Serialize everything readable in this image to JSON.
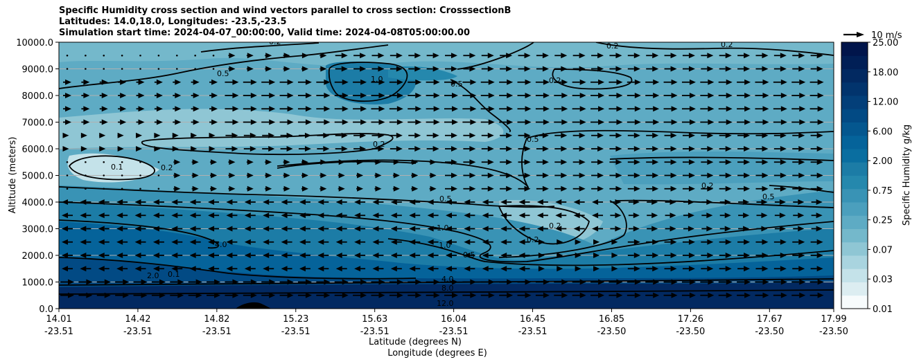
{
  "chart_data": {
    "type": "contourf",
    "title_lines": [
      "Specific Humidity cross section and wind vectors parallel to cross section: CrosssectionB",
      "Latitudes: 14.0,18.0, Longitudes: -23.5,-23.5",
      "Simulation start time: 2024-04-07_00:00:00, Valid time: 2024-04-08T05:00:00.00"
    ],
    "xlabel_lines": [
      "Latitude (degrees N)",
      "Longitude (degrees E)"
    ],
    "ylabel": "Altitude (meters)",
    "x_ticks": [
      {
        "lat": "14.01",
        "lon": "-23.51"
      },
      {
        "lat": "14.42",
        "lon": "-23.51"
      },
      {
        "lat": "14.82",
        "lon": "-23.51"
      },
      {
        "lat": "15.23",
        "lon": "-23.51"
      },
      {
        "lat": "15.63",
        "lon": "-23.51"
      },
      {
        "lat": "16.04",
        "lon": "-23.51"
      },
      {
        "lat": "16.45",
        "lon": "-23.51"
      },
      {
        "lat": "16.85",
        "lon": "-23.50"
      },
      {
        "lat": "17.26",
        "lon": "-23.50"
      },
      {
        "lat": "17.67",
        "lon": "-23.50"
      },
      {
        "lat": "17.99",
        "lon": "-23.50"
      }
    ],
    "y_ticks": [
      "0.0",
      "1000.0",
      "2000.0",
      "3000.0",
      "4000.0",
      "5000.0",
      "6000.0",
      "7000.0",
      "8000.0",
      "9000.0",
      "10000.0"
    ],
    "ylim": [
      0,
      10000
    ],
    "grid": "horizontal",
    "colorbar": {
      "label": "Specific Humidity g/kg",
      "ticks": [
        "0.01",
        "0.03",
        "0.07",
        "0.25",
        "0.75",
        "2.00",
        "6.00",
        "12.00",
        "18.00",
        "25.00"
      ],
      "colors": [
        "#f7fbfc",
        "#dcedf1",
        "#c4e2e9",
        "#a9d4df",
        "#8fc6d4",
        "#74b8cb",
        "#5eabc4",
        "#4b9fbd",
        "#3993b5",
        "#2588ad",
        "#1c7ca6",
        "#0a6ea0",
        "#05639a",
        "#04578f",
        "#024a84",
        "#033f79",
        "#02346d",
        "#022961",
        "#011f56",
        "#01154b"
      ]
    },
    "contour_levels": [
      "0.1",
      "0.2",
      "0.5",
      "1.0",
      "2.0",
      "4.0",
      "8.0",
      "12.0"
    ],
    "wind_reference": "10 m/s"
  }
}
